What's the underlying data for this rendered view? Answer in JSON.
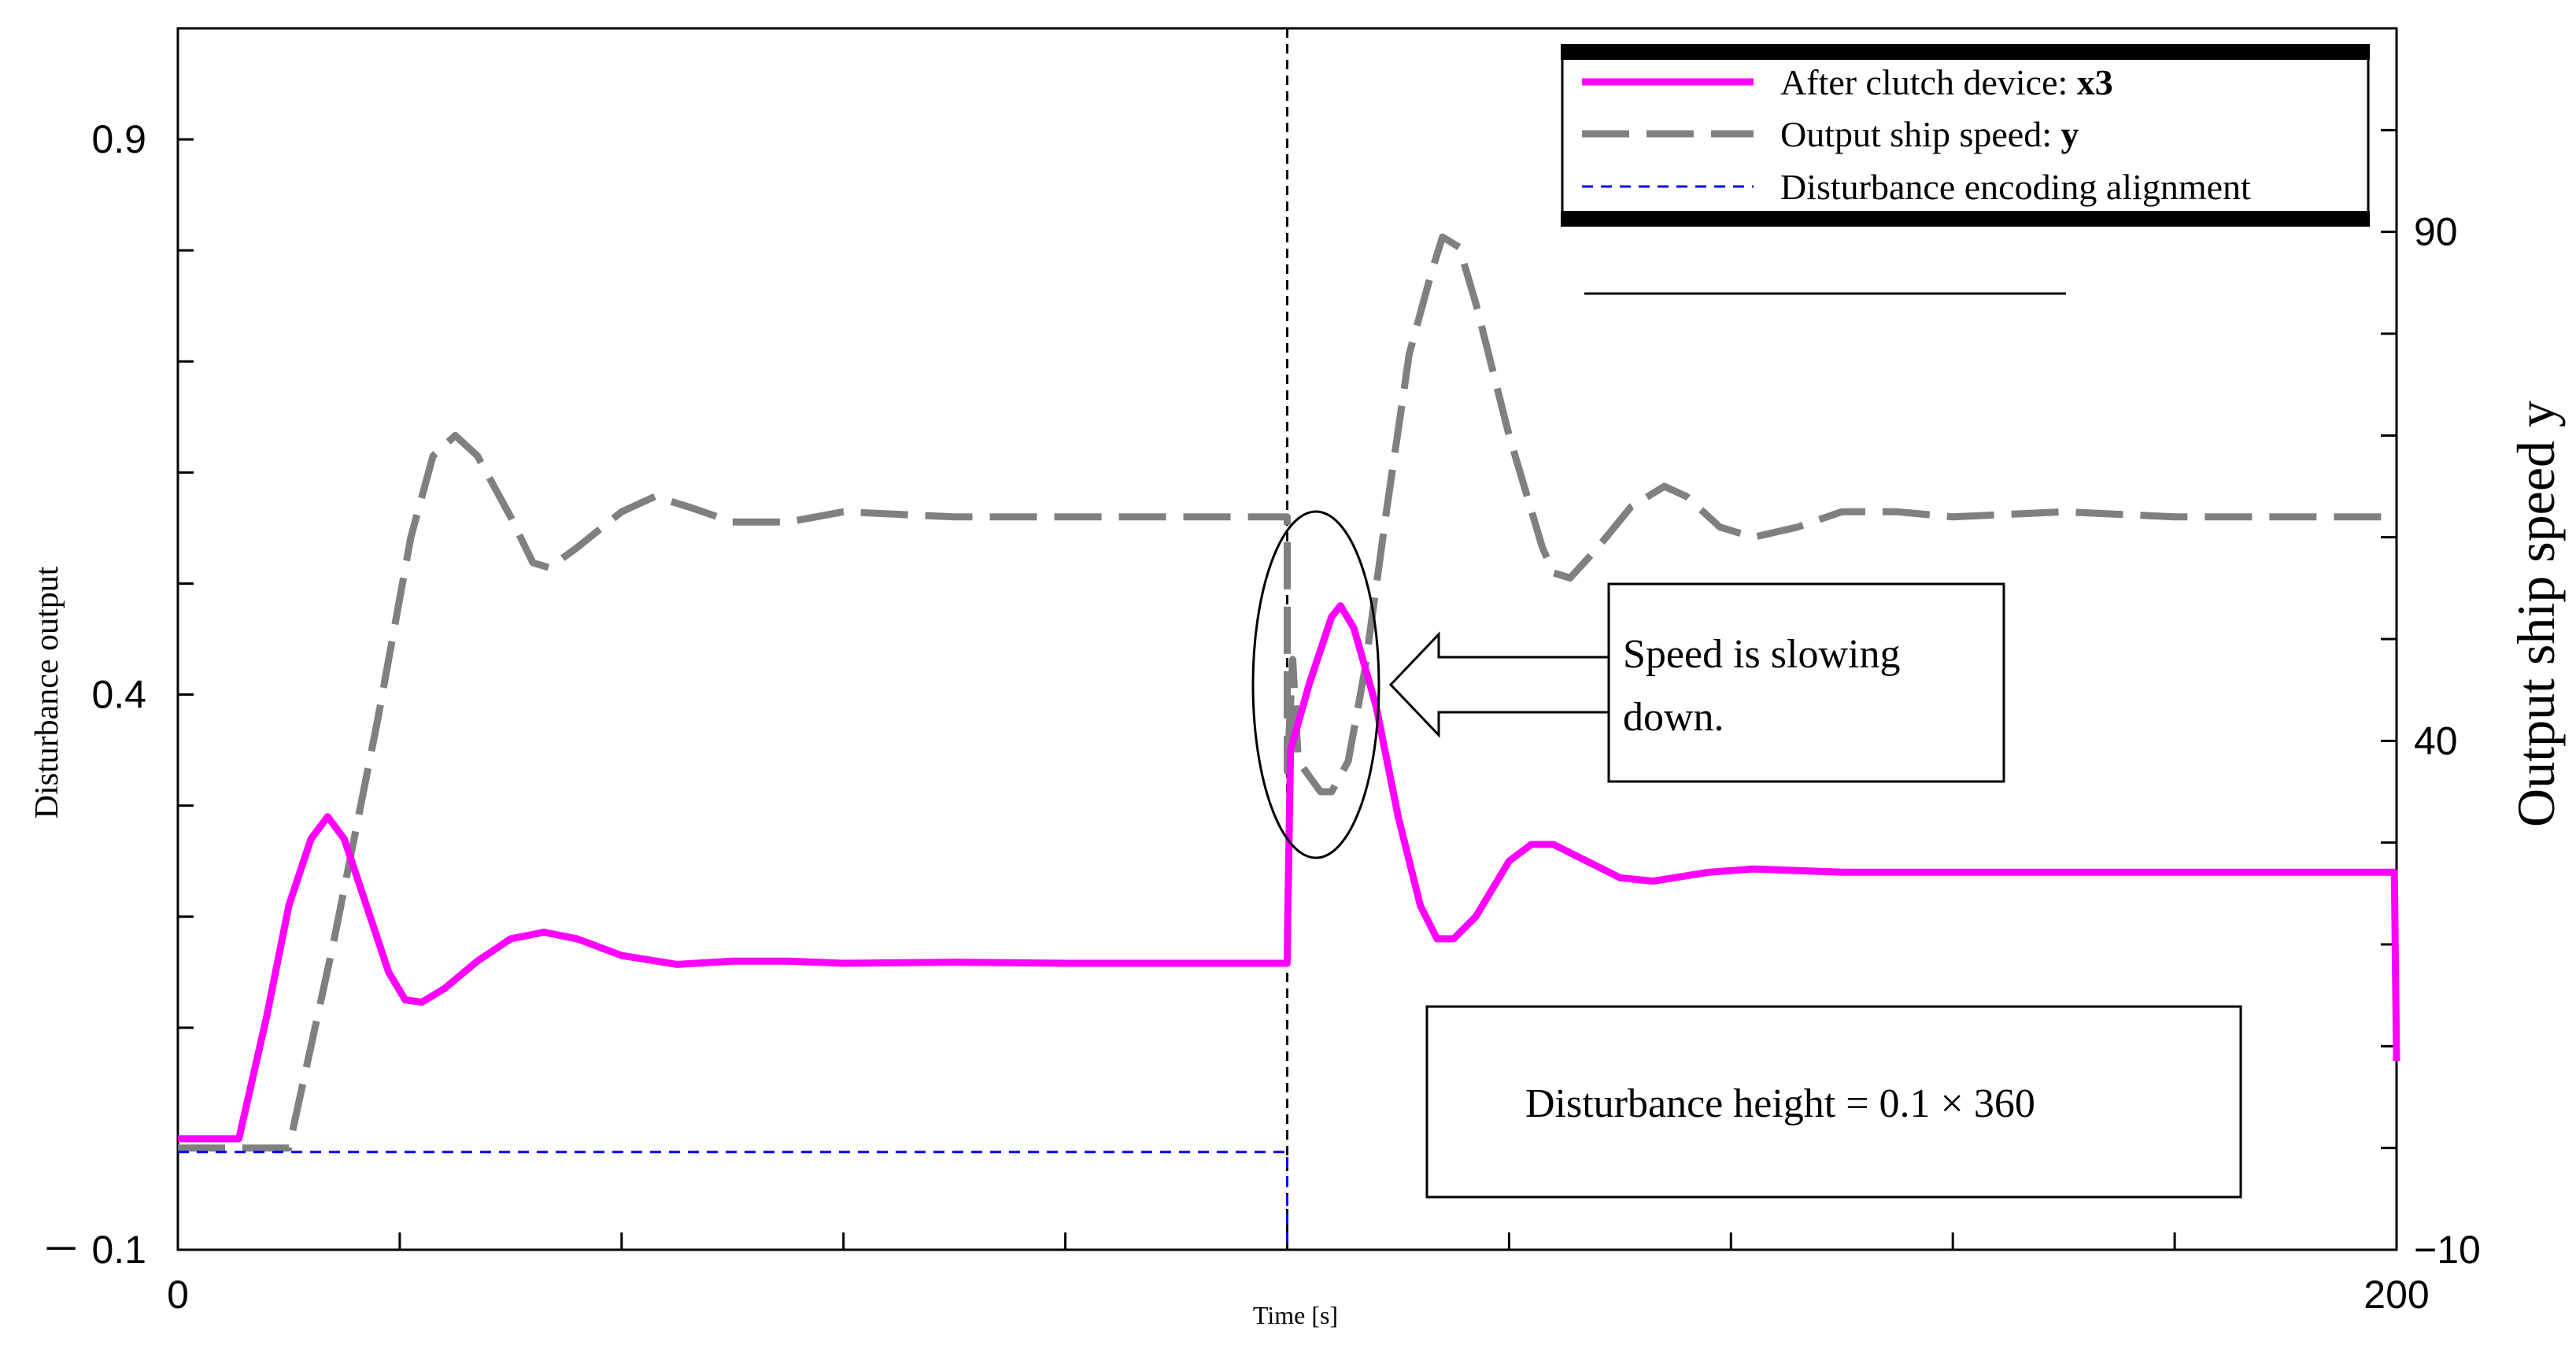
{
  "chart_data": {
    "type": "line",
    "xlabel": "Time  [s]",
    "ylabel": "Disturbance output",
    "y2label": "Output ship speed y",
    "xlim": [
      0,
      200
    ],
    "ylim": [
      -0.1,
      1.0
    ],
    "y2lim": [
      -10,
      110
    ],
    "xticks": [
      0,
      200
    ],
    "yticks": [
      -0.1,
      0.4,
      0.9
    ],
    "y2ticks": [
      -10,
      40,
      90
    ],
    "xtick_labels": [
      "0",
      "200"
    ],
    "ytick_labels": [
      "－ 0.1",
      "0.4",
      "0.9"
    ],
    "y2tick_labels": [
      "−10",
      "40",
      "90"
    ],
    "event_time": 100,
    "legend": {
      "position": "top-right",
      "entries": [
        {
          "prefix": "After clutch device: ",
          "bold": "x3"
        },
        {
          "prefix": "Output ship speed: ",
          "bold": "y"
        },
        {
          "prefix": "Disturbance encoding alignment",
          "bold": ""
        }
      ]
    },
    "annotations": {
      "slowing": {
        "line1": "Speed is slowing",
        "line2": "down."
      },
      "height": "Disturbance height = 0.1 × 360"
    },
    "series": [
      {
        "name": "After clutch device: x3",
        "axis": "left",
        "color": "#ff00ff",
        "style": "solid",
        "points": [
          [
            0,
            0.0
          ],
          [
            5.5,
            0.0
          ],
          [
            8,
            0.11
          ],
          [
            10,
            0.21
          ],
          [
            12,
            0.27
          ],
          [
            13.5,
            0.29
          ],
          [
            15,
            0.27
          ],
          [
            17,
            0.21
          ],
          [
            19,
            0.15
          ],
          [
            20.5,
            0.125
          ],
          [
            22,
            0.123
          ],
          [
            24,
            0.135
          ],
          [
            27,
            0.16
          ],
          [
            30,
            0.18
          ],
          [
            33,
            0.186
          ],
          [
            36,
            0.18
          ],
          [
            40,
            0.165
          ],
          [
            45,
            0.157
          ],
          [
            50,
            0.16
          ],
          [
            55,
            0.16
          ],
          [
            60,
            0.158
          ],
          [
            70,
            0.159
          ],
          [
            80,
            0.158
          ],
          [
            90,
            0.158
          ],
          [
            100,
            0.158
          ],
          [
            100.05,
            0.2
          ],
          [
            100.3,
            0.35
          ],
          [
            102,
            0.41
          ],
          [
            104,
            0.47
          ],
          [
            104.8,
            0.48
          ],
          [
            106,
            0.46
          ],
          [
            108,
            0.39
          ],
          [
            110,
            0.29
          ],
          [
            112,
            0.21
          ],
          [
            113.5,
            0.18
          ],
          [
            115,
            0.18
          ],
          [
            117,
            0.2
          ],
          [
            120,
            0.25
          ],
          [
            122,
            0.265
          ],
          [
            124,
            0.265
          ],
          [
            127,
            0.25
          ],
          [
            130,
            0.235
          ],
          [
            133,
            0.232
          ],
          [
            138,
            0.24
          ],
          [
            142,
            0.243
          ],
          [
            150,
            0.24
          ],
          [
            160,
            0.24
          ],
          [
            170,
            0.24
          ],
          [
            180,
            0.24
          ],
          [
            190,
            0.24
          ],
          [
            199.8,
            0.24
          ],
          [
            200,
            0.07
          ]
        ]
      },
      {
        "name": "Output ship speed: y",
        "axis": "right",
        "color": "#808080",
        "style": "dashed",
        "points": [
          [
            0,
            0
          ],
          [
            10,
            0
          ],
          [
            14,
            20
          ],
          [
            18,
            42
          ],
          [
            21,
            60
          ],
          [
            23,
            68
          ],
          [
            25,
            70
          ],
          [
            27,
            68
          ],
          [
            30,
            62
          ],
          [
            32,
            57.5
          ],
          [
            33.5,
            57
          ],
          [
            36,
            59
          ],
          [
            40,
            62.5
          ],
          [
            43,
            64
          ],
          [
            46,
            63
          ],
          [
            50,
            61.5
          ],
          [
            55,
            61.5
          ],
          [
            60,
            62.5
          ],
          [
            70,
            62
          ],
          [
            80,
            62
          ],
          [
            90,
            62
          ],
          [
            100,
            62
          ],
          [
            100,
            37
          ],
          [
            100.5,
            48
          ],
          [
            101,
            38
          ],
          [
            103,
            35
          ],
          [
            104,
            35
          ],
          [
            105.5,
            38
          ],
          [
            107,
            47
          ],
          [
            109,
            63
          ],
          [
            111,
            78
          ],
          [
            113,
            86
          ],
          [
            114,
            89.5
          ],
          [
            115.5,
            88.5
          ],
          [
            117,
            83
          ],
          [
            120,
            70
          ],
          [
            123,
            59
          ],
          [
            124,
            56.5
          ],
          [
            125.5,
            56
          ],
          [
            128,
            59
          ],
          [
            131,
            63
          ],
          [
            134,
            65
          ],
          [
            136,
            64
          ],
          [
            139,
            61
          ],
          [
            142,
            60
          ],
          [
            146,
            61
          ],
          [
            150,
            62.5
          ],
          [
            155,
            62.5
          ],
          [
            160,
            62
          ],
          [
            170,
            62.5
          ],
          [
            180,
            62
          ],
          [
            190,
            62
          ],
          [
            200,
            62
          ]
        ]
      },
      {
        "name": "Disturbance encoding alignment",
        "axis": "left",
        "color": "#0000ff",
        "style": "dotted",
        "points": [
          [
            0,
            -0.012
          ],
          [
            100,
            -0.012
          ],
          [
            100,
            -0.1
          ]
        ]
      }
    ]
  }
}
